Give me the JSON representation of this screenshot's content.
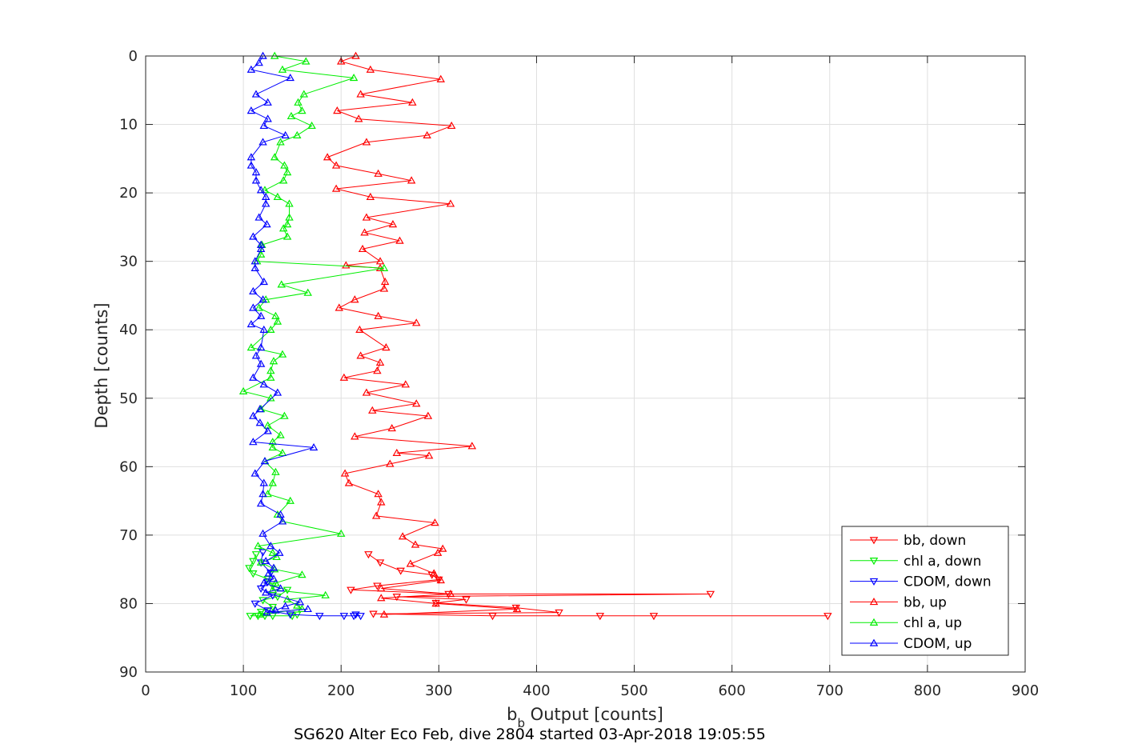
{
  "chart_data": {
    "type": "line",
    "xlabel_main": "b",
    "xlabel_sub": "b",
    "xlabel_rest": " Output [counts]",
    "ylabel": "Depth [counts]",
    "footer": "SG620 Alter Eco Feb, dive 2804 started 03-Apr-2018 19:05:55",
    "xlim": [
      0,
      900
    ],
    "ylim": [
      0,
      90
    ],
    "y_reversed": true,
    "grid": true,
    "legend_position": "bottom-right",
    "xticks": [
      0,
      100,
      200,
      300,
      400,
      500,
      600,
      700,
      800,
      900
    ],
    "yticks": [
      0,
      10,
      20,
      30,
      40,
      50,
      60,
      70,
      80,
      90
    ],
    "series": [
      {
        "name": "bb, down",
        "color": "#ff0000",
        "marker": "triangle-down",
        "points": [
          [
            228,
            72.8
          ],
          [
            240,
            74
          ],
          [
            261,
            75.2
          ],
          [
            293,
            75.8
          ],
          [
            300,
            76.5
          ],
          [
            237,
            77.4
          ],
          [
            210,
            78
          ],
          [
            310,
            78.6
          ],
          [
            578,
            78.6
          ],
          [
            257,
            79
          ],
          [
            328,
            79.4
          ],
          [
            297,
            79.9
          ],
          [
            379,
            80.6
          ],
          [
            423,
            81.3
          ],
          [
            233,
            81.5
          ],
          [
            355,
            81.8
          ],
          [
            465,
            81.8
          ],
          [
            520,
            81.8
          ],
          [
            698,
            81.8
          ]
        ]
      },
      {
        "name": "chl a, down",
        "color": "#00ee00",
        "marker": "triangle-down",
        "points": [
          [
            113,
            72.8
          ],
          [
            110,
            73.8
          ],
          [
            106,
            74.8
          ],
          [
            110,
            75.6
          ],
          [
            125,
            76.4
          ],
          [
            130,
            77.4
          ],
          [
            145,
            78
          ],
          [
            135,
            79
          ],
          [
            120,
            79.5
          ],
          [
            130,
            80.5
          ],
          [
            118,
            81.2
          ],
          [
            107,
            81.8
          ],
          [
            115,
            81.8
          ],
          [
            122,
            81.8
          ],
          [
            130,
            81.8
          ],
          [
            150,
            81.8
          ],
          [
            155,
            81.6
          ]
        ]
      },
      {
        "name": "CDOM, down",
        "color": "#0000ff",
        "marker": "triangle-down",
        "points": [
          [
            120,
            72.5
          ],
          [
            118,
            74
          ],
          [
            128,
            75.5
          ],
          [
            125,
            76.8
          ],
          [
            118,
            77.8
          ],
          [
            130,
            78.8
          ],
          [
            112,
            80
          ],
          [
            125,
            81
          ],
          [
            148,
            81.6
          ],
          [
            178,
            81.8
          ],
          [
            203,
            81.8
          ],
          [
            213,
            81.8
          ],
          [
            220,
            81.8
          ],
          [
            215,
            81.6
          ]
        ]
      },
      {
        "name": "bb, up",
        "color": "#ff0000",
        "marker": "triangle-up",
        "points": [
          [
            215,
            0
          ],
          [
            200,
            0.8
          ],
          [
            230,
            2
          ],
          [
            302,
            3.4
          ],
          [
            220,
            5.6
          ],
          [
            273,
            6.8
          ],
          [
            196,
            8
          ],
          [
            218,
            9.2
          ],
          [
            313,
            10.2
          ],
          [
            288,
            11.6
          ],
          [
            226,
            12.6
          ],
          [
            186,
            14.8
          ],
          [
            195,
            16
          ],
          [
            238,
            17.2
          ],
          [
            272,
            18.2
          ],
          [
            195,
            19.4
          ],
          [
            230,
            20.6
          ],
          [
            312,
            21.6
          ],
          [
            226,
            23.6
          ],
          [
            253,
            24.6
          ],
          [
            224,
            25.8
          ],
          [
            260,
            27
          ],
          [
            222,
            28.2
          ],
          [
            240,
            30
          ],
          [
            205,
            30.6
          ],
          [
            240,
            31
          ],
          [
            245,
            33
          ],
          [
            244,
            34
          ],
          [
            214,
            35.6
          ],
          [
            198,
            36.8
          ],
          [
            238,
            38
          ],
          [
            277,
            39
          ],
          [
            219,
            40
          ],
          [
            246,
            42.6
          ],
          [
            220,
            43.8
          ],
          [
            240,
            44.8
          ],
          [
            237,
            46
          ],
          [
            203,
            47
          ],
          [
            266,
            48
          ],
          [
            226,
            49.2
          ],
          [
            277,
            50.8
          ],
          [
            232,
            51.8
          ],
          [
            289,
            52.6
          ],
          [
            252,
            54.4
          ],
          [
            214,
            55.6
          ],
          [
            334,
            57
          ],
          [
            257,
            58
          ],
          [
            290,
            58.4
          ],
          [
            250,
            59.6
          ],
          [
            204,
            61
          ],
          [
            208,
            62.4
          ],
          [
            238,
            64
          ],
          [
            241,
            65.2
          ],
          [
            236,
            67.2
          ],
          [
            296,
            68.2
          ],
          [
            263,
            70.2
          ],
          [
            276,
            71.4
          ],
          [
            304,
            72
          ],
          [
            299,
            72.6
          ],
          [
            271,
            74.2
          ],
          [
            295,
            75.6
          ],
          [
            302,
            76.6
          ],
          [
            241,
            77.8
          ],
          [
            312,
            78.6
          ],
          [
            241,
            79.2
          ],
          [
            297,
            80
          ],
          [
            380,
            80.8
          ],
          [
            244,
            81.6
          ]
        ]
      },
      {
        "name": "chl a, up",
        "color": "#00ee00",
        "marker": "triangle-up",
        "points": [
          [
            132,
            0
          ],
          [
            164,
            0.8
          ],
          [
            140,
            2
          ],
          [
            213,
            3.2
          ],
          [
            162,
            5.6
          ],
          [
            156,
            6.8
          ],
          [
            160,
            8
          ],
          [
            149,
            8.8
          ],
          [
            170,
            10.2
          ],
          [
            155,
            11.6
          ],
          [
            138,
            12.6
          ],
          [
            132,
            14.8
          ],
          [
            142,
            16
          ],
          [
            145,
            17
          ],
          [
            141,
            18.2
          ],
          [
            122,
            19.6
          ],
          [
            135,
            20.6
          ],
          [
            147,
            21.6
          ],
          [
            147,
            23.6
          ],
          [
            145,
            24.6
          ],
          [
            141,
            25.2
          ],
          [
            145,
            26.4
          ],
          [
            119,
            27.6
          ],
          [
            118,
            29
          ],
          [
            114,
            30
          ],
          [
            244,
            31
          ],
          [
            139,
            33.4
          ],
          [
            166,
            34.6
          ],
          [
            123,
            35.6
          ],
          [
            116,
            36.8
          ],
          [
            133,
            38
          ],
          [
            135,
            38.8
          ],
          [
            128,
            40
          ],
          [
            108,
            42.6
          ],
          [
            140,
            43.6
          ],
          [
            131,
            44.6
          ],
          [
            128,
            46
          ],
          [
            128,
            47
          ],
          [
            100,
            49
          ],
          [
            128,
            50
          ],
          [
            118,
            51.6
          ],
          [
            142,
            52.6
          ],
          [
            125,
            54
          ],
          [
            138,
            55.4
          ],
          [
            130,
            56.4
          ],
          [
            130,
            57.2
          ],
          [
            140,
            58
          ],
          [
            122,
            59.2
          ],
          [
            133,
            60.8
          ],
          [
            130,
            62.4
          ],
          [
            125,
            64
          ],
          [
            148,
            65
          ],
          [
            135,
            67
          ],
          [
            140,
            68
          ],
          [
            200,
            69.8
          ],
          [
            115,
            71.6
          ],
          [
            130,
            72.6
          ],
          [
            134,
            73.2
          ],
          [
            118,
            74
          ],
          [
            132,
            75
          ],
          [
            160,
            75.8
          ],
          [
            133,
            77
          ],
          [
            130,
            78
          ],
          [
            184,
            78.8
          ],
          [
            145,
            79.4
          ],
          [
            155,
            80.3
          ],
          [
            160,
            80.8
          ],
          [
            117,
            81.6
          ]
        ]
      },
      {
        "name": "CDOM, up",
        "color": "#0000ff",
        "marker": "triangle-up",
        "points": [
          [
            120,
            0
          ],
          [
            116,
            1
          ],
          [
            108,
            2
          ],
          [
            148,
            3.2
          ],
          [
            113,
            5.6
          ],
          [
            125,
            6.8
          ],
          [
            108,
            8
          ],
          [
            125,
            9.2
          ],
          [
            121,
            10.2
          ],
          [
            143,
            11.6
          ],
          [
            120,
            12.6
          ],
          [
            108,
            14.8
          ],
          [
            108,
            16
          ],
          [
            113,
            17
          ],
          [
            113,
            18.2
          ],
          [
            118,
            19.6
          ],
          [
            123,
            20.6
          ],
          [
            123,
            21.6
          ],
          [
            116,
            23.6
          ],
          [
            124,
            24.6
          ],
          [
            110,
            26.4
          ],
          [
            118,
            27.6
          ],
          [
            118,
            28.2
          ],
          [
            112,
            30
          ],
          [
            112,
            31
          ],
          [
            121,
            33
          ],
          [
            110,
            34.4
          ],
          [
            120,
            35.6
          ],
          [
            110,
            36.8
          ],
          [
            118,
            38
          ],
          [
            108,
            39.2
          ],
          [
            121,
            40
          ],
          [
            118,
            42.6
          ],
          [
            113,
            43.8
          ],
          [
            118,
            45
          ],
          [
            110,
            47
          ],
          [
            121,
            48
          ],
          [
            135,
            49.2
          ],
          [
            117,
            51.6
          ],
          [
            110,
            52.6
          ],
          [
            117,
            53.6
          ],
          [
            125,
            54.8
          ],
          [
            110,
            56.4
          ],
          [
            172,
            57.2
          ],
          [
            122,
            59.2
          ],
          [
            112,
            61
          ],
          [
            121,
            62.4
          ],
          [
            120,
            64
          ],
          [
            118,
            65.4
          ],
          [
            138,
            67
          ],
          [
            140,
            68
          ],
          [
            120,
            69.8
          ],
          [
            128,
            71.6
          ],
          [
            137,
            72.6
          ],
          [
            123,
            73.8
          ],
          [
            131,
            74.8
          ],
          [
            126,
            75.6
          ],
          [
            131,
            76.4
          ],
          [
            121,
            77
          ],
          [
            138,
            77.8
          ],
          [
            123,
            78.4
          ],
          [
            158,
            79.8
          ],
          [
            143,
            80.4
          ],
          [
            133,
            81
          ],
          [
            124,
            81.3
          ],
          [
            166,
            80.8
          ]
        ]
      }
    ]
  }
}
